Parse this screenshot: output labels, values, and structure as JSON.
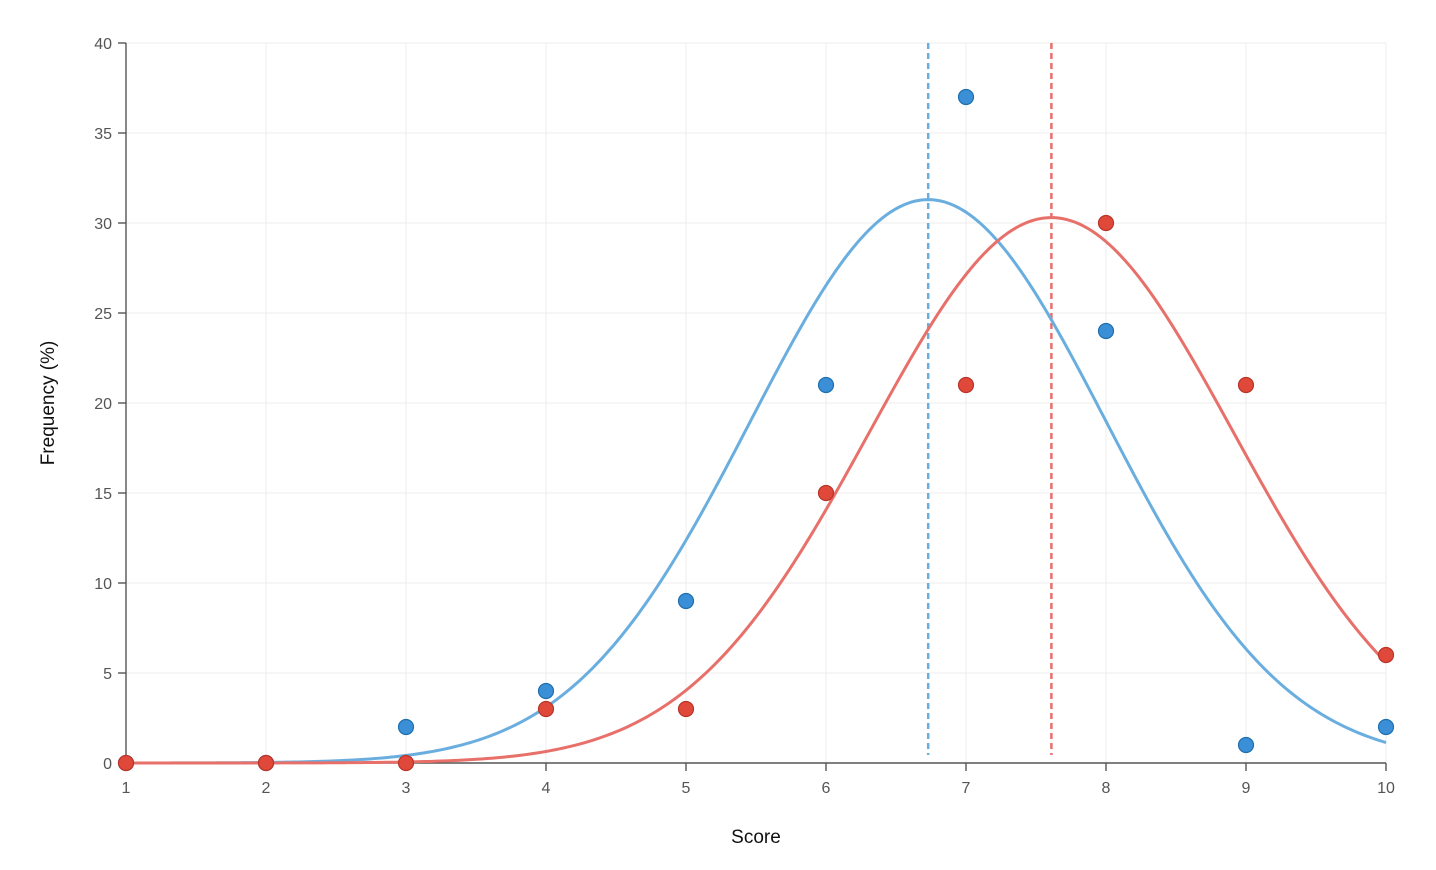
{
  "chart_data": {
    "type": "scatter",
    "title": "",
    "xlabel": "Score",
    "ylabel": "Frequency (%)",
    "xlim": [
      1,
      10
    ],
    "ylim": [
      0,
      40
    ],
    "x_ticks": [
      "1",
      "2",
      "3",
      "4",
      "5",
      "6",
      "7",
      "8",
      "9",
      "10"
    ],
    "y_ticks": [
      "0",
      "5",
      "10",
      "15",
      "20",
      "25",
      "30",
      "35",
      "40"
    ],
    "grid": true,
    "legend": "none",
    "series": [
      {
        "color": "#3a8fd6",
        "curve_color": "#6aaee0",
        "x": [
          1,
          2,
          3,
          4,
          5,
          6,
          7,
          8,
          9,
          10
        ],
        "values": [
          0,
          0,
          2,
          4,
          9,
          21,
          37,
          24,
          1,
          2
        ],
        "fit": {
          "mean": 6.73,
          "sd": 1.27,
          "peak": 31.3
        }
      },
      {
        "color": "#e0493a",
        "curve_color": "#e8706a",
        "x": [
          1,
          2,
          3,
          4,
          5,
          6,
          7,
          8,
          9,
          10
        ],
        "values": [
          0,
          0,
          0,
          3,
          3,
          15,
          21,
          30,
          21,
          6
        ],
        "fit": {
          "mean": 7.61,
          "sd": 1.3,
          "peak": 30.3
        }
      }
    ]
  }
}
